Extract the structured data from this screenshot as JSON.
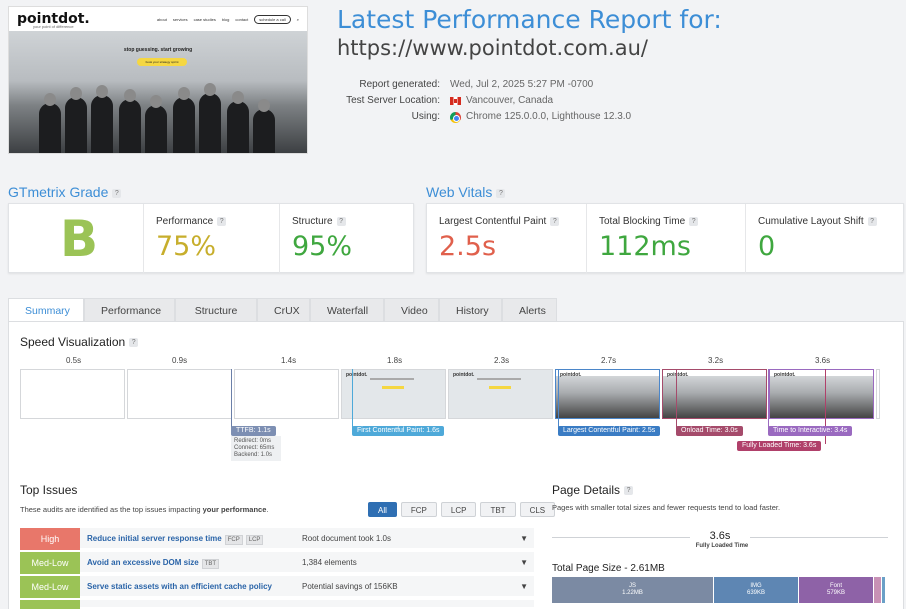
{
  "report": {
    "title": "Latest Performance Report for:",
    "url": "https://www.pointdot.com.au/",
    "meta_labels": [
      "Report generated:",
      "Test Server Location:",
      "Using:"
    ],
    "generated": "Wed, Jul 2, 2025 5:27 PM -0700",
    "location": "Vancouver, Canada",
    "using": "Chrome 125.0.0.0, Lighthouse 12.3.0"
  },
  "thumbnail": {
    "logo": "pointdot.",
    "tagline": "your point of difference",
    "menu": [
      "about",
      "services",
      "case studies",
      "blog",
      "contact"
    ],
    "cta": "schedule a call",
    "hero_title": "stop guessing. start growing",
    "hero_button": "book your strategy sprint"
  },
  "grade": {
    "heading": "GTmetrix Grade",
    "letter": "B",
    "performance_label": "Performance",
    "performance": "75%",
    "structure_label": "Structure",
    "structure": "95%"
  },
  "vitals": {
    "heading": "Web Vitals",
    "lcp_label": "Largest Contentful Paint",
    "lcp": "2.5s",
    "tbt_label": "Total Blocking Time",
    "tbt": "112ms",
    "cls_label": "Cumulative Layout Shift",
    "cls": "0"
  },
  "tabs": [
    "Summary",
    "Performance",
    "Structure",
    "CrUX",
    "Waterfall",
    "Video",
    "History",
    "Alerts"
  ],
  "speed": {
    "heading": "Speed Visualization",
    "times": [
      "0.5s",
      "0.9s",
      "1.4s",
      "1.8s",
      "2.3s",
      "2.7s",
      "3.2s",
      "3.6s"
    ],
    "frame_logo": "pointdot.",
    "ttfb": "TTFB: 1.1s",
    "ttfb_details": [
      "Redirect: 0ms",
      "Connect: 65ms",
      "Backend: 1.0s"
    ],
    "fcp": "First Contentful Paint: 1.6s",
    "lcp": "Largest Contentful Paint: 2.5s",
    "onload": "Onload Time: 3.0s",
    "tti": "Time to Interactive: 3.4s",
    "fully_loaded": "Fully Loaded Time: 3.6s"
  },
  "issues": {
    "heading": "Top Issues",
    "desc_prefix": "These audits are identified as the top issues impacting ",
    "desc_bold": "your performance",
    "desc_suffix": ".",
    "filters": [
      "All",
      "FCP",
      "LCP",
      "TBT",
      "CLS"
    ],
    "rows": [
      {
        "severity": "High",
        "color": "#e8776a",
        "name": "Reduce initial server response time",
        "tags": [
          "FCP",
          "LCP"
        ],
        "detail": "Root document took 1.0s"
      },
      {
        "severity": "Med-Low",
        "color": "#9bc356",
        "name": "Avoid an excessive DOM size",
        "tags": [
          "TBT"
        ],
        "detail": "1,384 elements"
      },
      {
        "severity": "Med-Low",
        "color": "#9bc356",
        "name": "Serve static assets with an efficient cache policy",
        "tags": [],
        "detail": "Potential savings of 156KB"
      }
    ]
  },
  "page_details": {
    "heading": "Page Details",
    "desc": "Pages with smaller total sizes and fewer requests tend to load faster.",
    "fully_loaded_value": "3.6s",
    "fully_loaded_label": "Fully Loaded Time",
    "total_size_label": "Total Page Size - 2.61MB",
    "breakdown": [
      {
        "name": "JS",
        "size": "1.22MB",
        "color": "#7b8aa3",
        "share": 0.48
      },
      {
        "name": "IMG",
        "size": "639KB",
        "color": "#5e86b3",
        "share": 0.25
      },
      {
        "name": "Font",
        "size": "579KB",
        "color": "#8e62a7",
        "share": 0.22
      },
      {
        "name": "",
        "size": "",
        "color": "#c891b5",
        "share": 0.02
      },
      {
        "name": "",
        "size": "",
        "color": "#6aa0c7",
        "share": 0.01
      }
    ]
  }
}
